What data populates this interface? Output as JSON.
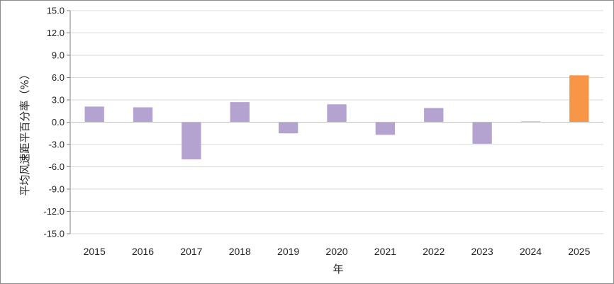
{
  "chart_data": {
    "type": "bar",
    "categories": [
      "2015",
      "2016",
      "2017",
      "2018",
      "2019",
      "2020",
      "2021",
      "2022",
      "2023",
      "2024",
      "2025"
    ],
    "values": [
      2.1,
      2.0,
      -5.0,
      2.7,
      -1.5,
      2.4,
      -1.7,
      1.9,
      -2.9,
      0.1,
      6.3
    ],
    "highlight_index": 10,
    "xlabel": "年",
    "ylabel": "平均风速距平百分率（%）",
    "ylim": [
      -15.0,
      15.0
    ],
    "ytick_step": 3.0,
    "grid": true,
    "colors": {
      "bar": "#b4a3d0",
      "highlight": "#f79646",
      "grid": "#d9d9d9",
      "axis": "#7f7f7f"
    }
  }
}
